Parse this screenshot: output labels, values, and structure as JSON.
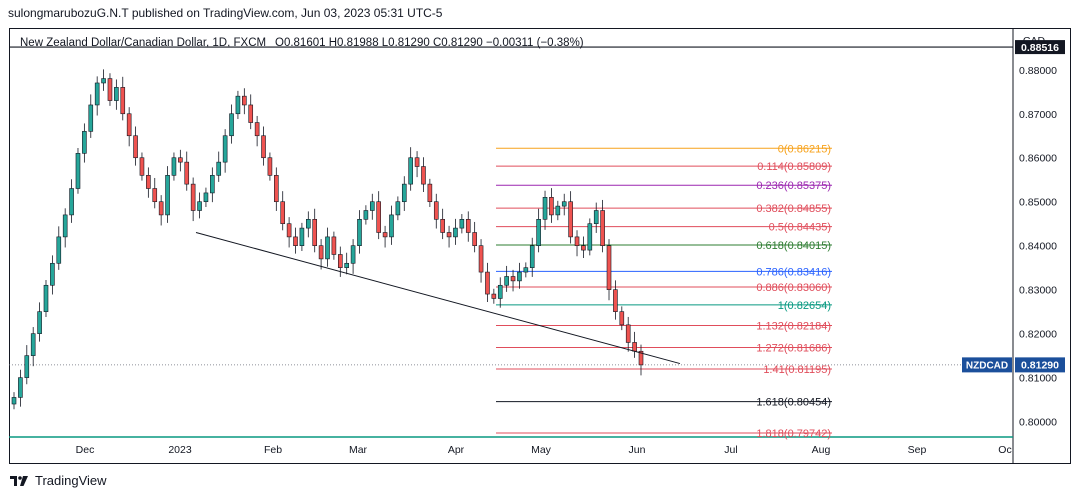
{
  "header": {
    "published": "sulongmarubozuG.N.T published on TradingView.com, Jun 03, 2023 05:31 UTC-5"
  },
  "legend": {
    "symbol": "New Zealand Dollar/Canadian Dollar, 1D, FXCM",
    "ohlc": "O0.81601  H0.81988  L0.81290  C0.81290  −0.00311 (−0.38%)"
  },
  "axis": {
    "currency": "CAD",
    "price_ticks": [
      "0.88000",
      "0.87000",
      "0.86000",
      "0.85000",
      "0.84000",
      "0.83000",
      "0.82000",
      "0.81000",
      "0.80000"
    ],
    "time_ticks": [
      "Dec",
      "2023",
      "Feb",
      "Mar",
      "Apr",
      "May",
      "Jun",
      "Jul",
      "Aug",
      "Sep",
      "Oc"
    ]
  },
  "badges": {
    "top_price": "0.88516",
    "symbol_tag": "NZDCAD",
    "last_price": "0.81290"
  },
  "footer": {
    "brand": "TradingView"
  },
  "colors": {
    "up": "#26a69a",
    "down": "#ef5350",
    "wick": "#131722"
  },
  "chart_data": {
    "type": "candlestick",
    "symbol": "NZDCAD",
    "timeframe": "1D",
    "ylim": [
      0.7965,
      0.8895
    ],
    "current_price": 0.8129,
    "horizontal_line": 0.88516,
    "candles_approx_close": [
      0.8055,
      0.81,
      0.815,
      0.82,
      0.825,
      0.831,
      0.836,
      0.842,
      0.847,
      0.853,
      0.861,
      0.866,
      0.872,
      0.877,
      0.878,
      0.873,
      0.876,
      0.87,
      0.865,
      0.86,
      0.856,
      0.853,
      0.85,
      0.847,
      0.856,
      0.86,
      0.859,
      0.854,
      0.848,
      0.85,
      0.852,
      0.856,
      0.859,
      0.865,
      0.87,
      0.874,
      0.872,
      0.868,
      0.865,
      0.86,
      0.856,
      0.85,
      0.845,
      0.842,
      0.84,
      0.844,
      0.846,
      0.84,
      0.837,
      0.842,
      0.838,
      0.835,
      0.836,
      0.84,
      0.846,
      0.848,
      0.85,
      0.843,
      0.842,
      0.847,
      0.85,
      0.854,
      0.86,
      0.858,
      0.854,
      0.85,
      0.846,
      0.843,
      0.842,
      0.844,
      0.846,
      0.843,
      0.84,
      0.834,
      0.829,
      0.828,
      0.831,
      0.833,
      0.832,
      0.834,
      0.835,
      0.84,
      0.846,
      0.851,
      0.847,
      0.849,
      0.85,
      0.842,
      0.84,
      0.839,
      0.845,
      0.848,
      0.84,
      0.83,
      0.825,
      0.822,
      0.818,
      0.816,
      0.8129
    ],
    "trendline": [
      {
        "label": "start",
        "price": 0.843
      },
      {
        "label": "end",
        "price": 0.8132
      }
    ],
    "fibonacci": [
      {
        "ratio": "0",
        "price": "0.86215",
        "label": "0(0.86215)",
        "color": "#f7a21b"
      },
      {
        "ratio": "0.114",
        "price": "0.85809",
        "label": "0.114(0.85809)",
        "color": "#e04d5b"
      },
      {
        "ratio": "0.236",
        "price": "0.85375",
        "label": "0.236(0.85375)",
        "color": "#9c27b0"
      },
      {
        "ratio": "0.382",
        "price": "0.84855",
        "label": "0.382(0.84855)",
        "color": "#e04d5b"
      },
      {
        "ratio": "0.5",
        "price": "0.84435",
        "label": "0.5(0.84435)",
        "color": "#e04d5b"
      },
      {
        "ratio": "0.618",
        "price": "0.84015",
        "label": "0.618(0.84015)",
        "color": "#2e7d32"
      },
      {
        "ratio": "0.786",
        "price": "0.83416",
        "label": "0.786(0.83416)",
        "color": "#2962ff"
      },
      {
        "ratio": "0.886",
        "price": "0.83060",
        "label": "0.886(0.83060)",
        "color": "#e04d5b"
      },
      {
        "ratio": "1",
        "price": "0.82654",
        "label": "1(0.82654)",
        "color": "#089981"
      },
      {
        "ratio": "1.132",
        "price": "0.82184",
        "label": "1.132(0.82184)",
        "color": "#e04d5b"
      },
      {
        "ratio": "1.272",
        "price": "0.81686",
        "label": "1.272(0.81686)",
        "color": "#e04d5b"
      },
      {
        "ratio": "1.41",
        "price": "0.81195",
        "label": "1.41(0.81195)",
        "color": "#e04d5b"
      },
      {
        "ratio": "1.618",
        "price": "0.80454",
        "label": "1.618(0.80454)",
        "color": "#131722"
      },
      {
        "ratio": "1.818",
        "price": "0.79742",
        "label": "1.818(0.79742)",
        "color": "#e04d5b"
      }
    ]
  }
}
